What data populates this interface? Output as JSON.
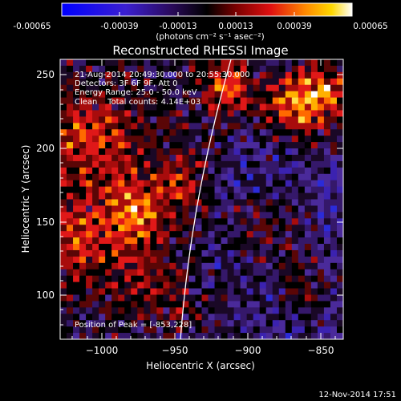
{
  "colorbar": {
    "tick_labels": [
      "-0.00065",
      "-0.00039",
      "-0.00013",
      "0.00013",
      "0.00039",
      "0.00065"
    ],
    "units_label": "(photons cm⁻² s⁻¹ asec⁻²)"
  },
  "plot": {
    "title": "Reconstructed RHESSI Image",
    "xlabel": "Heliocentric X (arcsec)",
    "ylabel": "Heliocentric Y (arcsec)",
    "x_ticks": [
      "−1000",
      "−950",
      "−900",
      "−850"
    ],
    "y_ticks": [
      "100",
      "150",
      "200",
      "250"
    ],
    "xlim": [
      -1027,
      -834
    ],
    "ylim": [
      72,
      262
    ],
    "info_lines": [
      "21-Aug-2014 20:49:30.000 to 20:55:30.000",
      "Detectors: 3F 6F 9F, Att 0",
      "Energy Range: 25.0 - 50.0 keV",
      "Clean    Total counts: 4.14E+03"
    ],
    "peak_label": "Position of Peak = [-853,228]"
  },
  "footer": {
    "timestamp": "12-Nov-2014 17:51"
  },
  "colors": {
    "background": "#000000",
    "limb_line": "#ffffff"
  }
}
